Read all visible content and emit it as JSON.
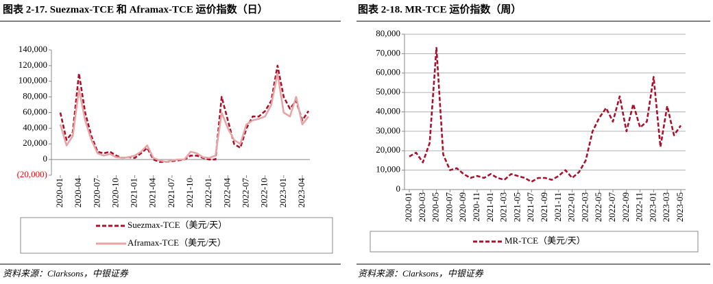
{
  "chart_data": [
    {
      "type": "line",
      "title": "图表 2-17. Suezmax-TCE 和 Aframax-TCE 运价指数（日）",
      "categories": [
        "2020-01",
        null,
        null,
        "2020-04",
        null,
        null,
        "2020-07",
        null,
        null,
        "2020-10",
        null,
        null,
        "2021-01",
        null,
        null,
        "2021-04",
        null,
        null,
        "2021-07",
        null,
        null,
        "2021-10",
        null,
        null,
        "2022-01",
        null,
        null,
        "2022-04",
        null,
        null,
        "2022-07",
        null,
        null,
        "2022-10",
        null,
        null,
        "2023-01",
        null,
        null,
        "2023-04",
        null
      ],
      "series": [
        {
          "name": "Suezmax-TCE（美元/天）",
          "color": "#a8102c",
          "dashed": true,
          "values": [
            60000,
            25000,
            35000,
            110000,
            60000,
            30000,
            10000,
            8000,
            10000,
            5000,
            2000,
            3000,
            2000,
            8000,
            15000,
            0,
            -3000,
            -3000,
            -2000,
            -1000,
            0,
            5000,
            5000,
            2000,
            0,
            0,
            80000,
            50000,
            20000,
            15000,
            40000,
            55000,
            55000,
            62000,
            75000,
            120000,
            80000,
            65000,
            75000,
            50000,
            62000
          ]
        },
        {
          "name": "Aframax-TCE（美元/天）",
          "color": "#e8a4a4",
          "dashed": false,
          "values": [
            45000,
            18000,
            30000,
            90000,
            50000,
            25000,
            8000,
            5000,
            7000,
            3000,
            2000,
            3000,
            5000,
            10000,
            18000,
            2000,
            -1000,
            -3000,
            -1000,
            0,
            0,
            10000,
            8000,
            3000,
            2000,
            5000,
            60000,
            40000,
            25000,
            20000,
            45000,
            50000,
            52000,
            55000,
            70000,
            110000,
            60000,
            55000,
            80000,
            45000,
            55000
          ]
        }
      ],
      "ylim": [
        -20000,
        140000
      ],
      "yticks": [
        {
          "value": -20000,
          "label": "(20,000)"
        },
        0,
        {
          "value": 20000,
          "label": "20,000"
        },
        {
          "value": 40000,
          "label": "40,000"
        },
        {
          "value": 60000,
          "label": "60,000"
        },
        {
          "value": 80000,
          "label": "80,000"
        },
        {
          "value": 100000,
          "label": "100,000"
        },
        {
          "value": 120000,
          "label": "120,000"
        },
        {
          "value": 140000,
          "label": "140,000"
        }
      ],
      "grid": false,
      "source": "资料来源：Clarksons，中银证券"
    },
    {
      "type": "line",
      "title": "图表 2-18. MR-TCE 运价指数（周）",
      "categories": [
        "2020-01",
        null,
        "2020-03",
        null,
        "2020-05",
        null,
        "2020-07",
        null,
        "2020-09",
        null,
        "2020-11",
        null,
        "2021-01",
        null,
        "2021-03",
        null,
        "2021-05",
        null,
        "2021-07",
        null,
        "2021-09",
        null,
        "2021-11",
        null,
        "2022-01",
        null,
        "2022-03",
        null,
        "2022-05",
        null,
        "2022-07",
        null,
        "2022-09",
        null,
        "2022-11",
        null,
        "2023-01",
        null,
        "2023-03",
        null,
        "2023-05"
      ],
      "series": [
        {
          "name": "MR-TCE（美元/天）",
          "color": "#a8102c",
          "dashed": true,
          "values": [
            17000,
            19000,
            14000,
            24000,
            73000,
            18000,
            10000,
            11000,
            8000,
            6000,
            7000,
            6000,
            8000,
            6000,
            5000,
            8000,
            7000,
            6000,
            4000,
            6000,
            6000,
            5000,
            7000,
            10000,
            6000,
            9000,
            15000,
            30000,
            37000,
            42000,
            35000,
            48000,
            30000,
            44000,
            32000,
            35000,
            58000,
            22000,
            43000,
            28000,
            33000
          ]
        }
      ],
      "ylim": [
        0,
        80000
      ],
      "yticks": [
        0,
        {
          "value": 10000,
          "label": "10,000"
        },
        {
          "value": 20000,
          "label": "20,000"
        },
        {
          "value": 30000,
          "label": "30,000"
        },
        {
          "value": 40000,
          "label": "40,000"
        },
        {
          "value": 50000,
          "label": "50,000"
        },
        {
          "value": 60000,
          "label": "60,000"
        },
        {
          "value": 70000,
          "label": "70,000"
        },
        {
          "value": 80000,
          "label": "80,000"
        }
      ],
      "grid": true,
      "source": "资料来源：Clarksons，中银证券"
    }
  ]
}
